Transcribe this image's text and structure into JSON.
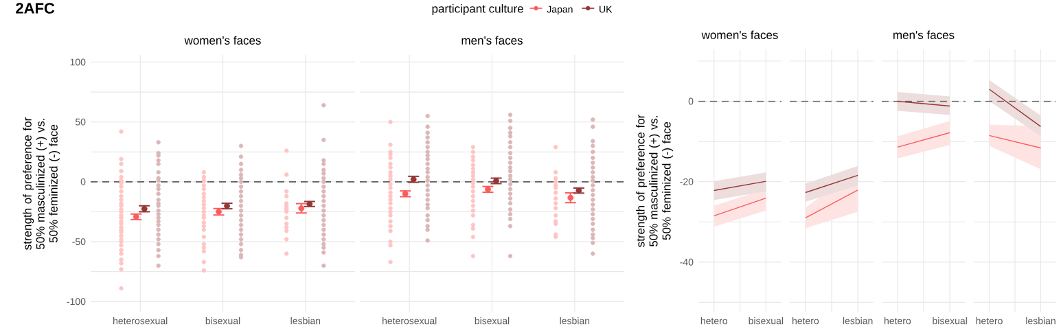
{
  "chart_data": [
    {
      "type": "scatter",
      "title": "women's faces",
      "ylabel": "strength of preference for 50% masculinized (+) vs. 50% feminized (-) face",
      "legend_title": "participant culture",
      "legend": "top",
      "annotations": [
        "2AFC"
      ],
      "categories": [
        "heterosexual",
        "bisexual",
        "lesbian"
      ],
      "ylim": [
        -109,
        106
      ],
      "yticks": [
        -100,
        {
          "value": -75,
          "label": null
        },
        -50,
        {
          "value": -25,
          "label": null
        },
        0,
        {
          "value": 25,
          "label": null
        },
        50,
        {
          "value": 75,
          "label": null
        },
        100
      ],
      "grid": true,
      "marker": "circle",
      "ref_lines": [
        {
          "axis": "y",
          "value": 0,
          "color": "#5f5f5f",
          "line_style": "dashed"
        }
      ],
      "series": [
        {
          "color": "#ffc4c4",
          "x": [
            "heterosexual",
            "heterosexual",
            "heterosexual",
            "heterosexual",
            "heterosexual",
            "heterosexual",
            "heterosexual",
            "heterosexual",
            "heterosexual",
            "heterosexual",
            "heterosexual",
            "heterosexual",
            "heterosexual",
            "heterosexual",
            "heterosexual",
            "heterosexual",
            "heterosexual",
            "heterosexual",
            "heterosexual",
            "heterosexual",
            "heterosexual",
            "heterosexual",
            "heterosexual",
            "heterosexual",
            "heterosexual",
            "heterosexual",
            "heterosexual",
            "heterosexual",
            "heterosexual",
            "heterosexual",
            "heterosexual",
            "heterosexual",
            "bisexual",
            "bisexual",
            "bisexual",
            "bisexual",
            "bisexual",
            "bisexual",
            "bisexual",
            "bisexual",
            "bisexual",
            "bisexual",
            "bisexual",
            "bisexual",
            "bisexual",
            "bisexual",
            "bisexual",
            "bisexual",
            "bisexual",
            "bisexual",
            "bisexual",
            "bisexual",
            "bisexual",
            "bisexual",
            "lesbian",
            "lesbian",
            "lesbian",
            "lesbian",
            "lesbian",
            "lesbian",
            "lesbian",
            "lesbian",
            "lesbian",
            "lesbian",
            "lesbian",
            "lesbian",
            "lesbian",
            "lesbian",
            "lesbian"
          ],
          "values": [
            42,
            19,
            15,
            9,
            4,
            1,
            -1,
            -4,
            -8,
            -12,
            -15,
            -18,
            -20,
            -23,
            -25,
            -28,
            -30,
            -33,
            -35,
            -38,
            -40,
            -42,
            -45,
            -48,
            -50,
            -53,
            -57,
            -60,
            -65,
            -68,
            -73,
            -89,
            8,
            4,
            1,
            -3,
            -6,
            -10,
            -13,
            -16,
            -19,
            -22,
            -25,
            -28,
            -30,
            -34,
            -37,
            -40,
            -46,
            -52,
            -55,
            -58,
            -67,
            -74,
            26,
            6,
            -8,
            -12,
            -18,
            -20,
            -22,
            -23,
            -25,
            -30,
            -35,
            -38,
            -41,
            -48,
            -60
          ]
        },
        {
          "color": "#dbb7b7",
          "x": [
            "heterosexual",
            "heterosexual",
            "heterosexual",
            "heterosexual",
            "heterosexual",
            "heterosexual",
            "heterosexual",
            "heterosexual",
            "heterosexual",
            "heterosexual",
            "heterosexual",
            "heterosexual",
            "heterosexual",
            "heterosexual",
            "heterosexual",
            "heterosexual",
            "heterosexual",
            "heterosexual",
            "heterosexual",
            "heterosexual",
            "heterosexual",
            "heterosexual",
            "heterosexual",
            "heterosexual",
            "heterosexual",
            "heterosexual",
            "bisexual",
            "bisexual",
            "bisexual",
            "bisexual",
            "bisexual",
            "bisexual",
            "bisexual",
            "bisexual",
            "bisexual",
            "bisexual",
            "bisexual",
            "bisexual",
            "bisexual",
            "bisexual",
            "bisexual",
            "bisexual",
            "bisexual",
            "bisexual",
            "bisexual",
            "bisexual",
            "bisexual",
            "bisexual",
            "bisexual",
            "lesbian",
            "lesbian",
            "lesbian",
            "lesbian",
            "lesbian",
            "lesbian",
            "lesbian",
            "lesbian",
            "lesbian",
            "lesbian",
            "lesbian",
            "lesbian",
            "lesbian",
            "lesbian",
            "lesbian",
            "lesbian",
            "lesbian",
            "lesbian",
            "lesbian",
            "lesbian",
            "lesbian",
            "lesbian",
            "lesbian",
            "lesbian"
          ],
          "values": [
            33,
            24,
            22,
            18,
            15,
            8,
            3,
            1,
            -3,
            -6,
            -10,
            -15,
            -18,
            -20,
            -24,
            -27,
            -30,
            -33,
            -36,
            -40,
            -44,
            -48,
            -52,
            -57,
            -62,
            -70,
            30,
            21,
            15,
            10,
            6,
            3,
            0,
            -4,
            -8,
            -12,
            -16,
            -20,
            -24,
            -28,
            -32,
            -36,
            -40,
            -44,
            -48,
            -52,
            -57,
            -61,
            -63,
            64,
            35,
            18,
            15,
            10,
            7,
            3,
            0,
            -4,
            -8,
            -12,
            -16,
            -20,
            -24,
            -28,
            -32,
            -36,
            -40,
            -44,
            -48,
            -52,
            -55,
            -59,
            -70
          ]
        },
        {
          "name": "Japan",
          "color": "#fb5c5c",
          "values": [
            -29.2,
            -25.0,
            -22.1
          ],
          "errors": [
            2.3,
            2.7,
            3.9
          ]
        },
        {
          "name": "UK",
          "color": "#953636",
          "values": [
            -22.5,
            -20.2,
            -18.5
          ],
          "errors": [
            2.5,
            2.3,
            2.1
          ]
        }
      ]
    },
    {
      "type": "scatter",
      "title": "men's faces",
      "categories": [
        "heterosexual",
        "bisexual",
        "lesbian"
      ],
      "ylim": [
        -109,
        106
      ],
      "yticks": [
        -100,
        {
          "value": -75,
          "label": null
        },
        -50,
        {
          "value": -25,
          "label": null
        },
        0,
        {
          "value": 25,
          "label": null
        },
        50,
        {
          "value": 75,
          "label": null
        },
        100
      ],
      "tick_labels": "x",
      "grid": true,
      "marker": "circle",
      "ref_lines": [
        {
          "axis": "y",
          "value": 0,
          "color": "#5f5f5f",
          "line_style": "dashed"
        }
      ],
      "series": [
        {
          "color": "#ffc4c4",
          "x": [
            "heterosexual",
            "heterosexual",
            "heterosexual",
            "heterosexual",
            "heterosexual",
            "heterosexual",
            "heterosexual",
            "heterosexual",
            "heterosexual",
            "heterosexual",
            "heterosexual",
            "heterosexual",
            "heterosexual",
            "heterosexual",
            "heterosexual",
            "heterosexual",
            "heterosexual",
            "heterosexual",
            "heterosexual",
            "heterosexual",
            "heterosexual",
            "heterosexual",
            "heterosexual",
            "heterosexual",
            "heterosexual",
            "bisexual",
            "bisexual",
            "bisexual",
            "bisexual",
            "bisexual",
            "bisexual",
            "bisexual",
            "bisexual",
            "bisexual",
            "bisexual",
            "bisexual",
            "bisexual",
            "bisexual",
            "bisexual",
            "bisexual",
            "bisexual",
            "bisexual",
            "bisexual",
            "bisexual",
            "bisexual",
            "bisexual",
            "lesbian",
            "lesbian",
            "lesbian",
            "lesbian",
            "lesbian",
            "lesbian",
            "lesbian",
            "lesbian",
            "lesbian",
            "lesbian",
            "lesbian",
            "lesbian",
            "lesbian",
            "lesbian",
            "lesbian"
          ],
          "values": [
            50,
            31,
            25,
            23,
            20,
            15,
            12,
            8,
            5,
            2,
            -2,
            -5,
            -9,
            -12,
            -15,
            -18,
            -22,
            -25,
            -28,
            -33,
            -37,
            -41,
            -50,
            -53,
            -67,
            29,
            25,
            21,
            18,
            14,
            11,
            8,
            5,
            2,
            -1,
            -4,
            -8,
            -12,
            -16,
            -20,
            -24,
            -28,
            -36,
            -39,
            -46,
            -62,
            29,
            8,
            3,
            0,
            -3,
            -5,
            -9,
            -14,
            -18,
            -22,
            -28,
            -33,
            -35,
            -44,
            -46
          ]
        },
        {
          "color": "#dbb7b7",
          "x": [
            "heterosexual",
            "heterosexual",
            "heterosexual",
            "heterosexual",
            "heterosexual",
            "heterosexual",
            "heterosexual",
            "heterosexual",
            "heterosexual",
            "heterosexual",
            "heterosexual",
            "heterosexual",
            "heterosexual",
            "heterosexual",
            "heterosexual",
            "heterosexual",
            "heterosexual",
            "heterosexual",
            "heterosexual",
            "heterosexual",
            "heterosexual",
            "heterosexual",
            "heterosexual",
            "heterosexual",
            "heterosexual",
            "bisexual",
            "bisexual",
            "bisexual",
            "bisexual",
            "bisexual",
            "bisexual",
            "bisexual",
            "bisexual",
            "bisexual",
            "bisexual",
            "bisexual",
            "bisexual",
            "bisexual",
            "bisexual",
            "bisexual",
            "bisexual",
            "bisexual",
            "bisexual",
            "bisexual",
            "bisexual",
            "bisexual",
            "bisexual",
            "bisexual",
            "bisexual",
            "lesbian",
            "lesbian",
            "lesbian",
            "lesbian",
            "lesbian",
            "lesbian",
            "lesbian",
            "lesbian",
            "lesbian",
            "lesbian",
            "lesbian",
            "lesbian",
            "lesbian",
            "lesbian",
            "lesbian",
            "lesbian",
            "lesbian",
            "lesbian",
            "lesbian",
            "lesbian",
            "lesbian",
            "lesbian",
            "lesbian",
            "lesbian",
            "lesbian"
          ],
          "values": [
            55,
            46,
            41,
            37,
            33,
            29,
            25,
            22,
            19,
            15,
            11,
            8,
            4,
            1,
            -3,
            -7,
            -11,
            -15,
            -19,
            -22,
            -28,
            -32,
            -37,
            -40,
            -49,
            56,
            51,
            45,
            41,
            38,
            33,
            29,
            24,
            20,
            16,
            12,
            9,
            5,
            2,
            -2,
            -6,
            -10,
            -14,
            -18,
            -23,
            -27,
            -31,
            -37,
            -62,
            52,
            46,
            34,
            30,
            25,
            20,
            16,
            12,
            8,
            4,
            1,
            -3,
            -7,
            -11,
            -15,
            -19,
            -23,
            -27,
            -31,
            -35,
            -40,
            -44,
            -47,
            -51,
            -60
          ]
        },
        {
          "color": "#fb5c5c",
          "values": [
            -10.0,
            -6.3,
            -13.3
          ],
          "errors": [
            2.4,
            2.4,
            4.1
          ]
        },
        {
          "color": "#953636",
          "values": [
            2.1,
            0.8,
            -7.3
          ],
          "errors": [
            2.5,
            2.3,
            2.1
          ]
        }
      ]
    },
    {
      "type": "line",
      "title": "women's faces",
      "ylabel": "strength of preference for 50% masculinized (+) vs. 50% feminized (-) face",
      "categories": [
        "hetero",
        "bisexual"
      ],
      "ylim": [
        -52.5,
        12.9
      ],
      "yticks": [
        {
          "value": -50,
          "label": null
        },
        -40,
        {
          "value": -30,
          "label": null
        },
        -20,
        {
          "value": -10,
          "label": null
        },
        0,
        {
          "value": 10,
          "label": null
        }
      ],
      "grid": true,
      "ref_lines": [
        {
          "axis": "y",
          "value": 0,
          "color": "#5f5f5f",
          "line_style": "dashed"
        }
      ],
      "series": [
        {
          "color": "#fb5c5c",
          "values": [
            -28.5,
            -24.1
          ],
          "lower": [
            -31.2,
            -27.2
          ],
          "upper": [
            -26.0,
            -21.8
          ]
        },
        {
          "color": "#953636",
          "values": [
            -22.2,
            -19.9
          ],
          "lower": [
            -24.6,
            -22.4
          ],
          "upper": [
            -19.9,
            -17.7
          ]
        }
      ]
    },
    {
      "type": "line",
      "categories": [
        "hetero",
        "lesbian"
      ],
      "ylim": [
        -52.5,
        12.9
      ],
      "yticks": [
        {
          "value": -50,
          "label": null
        },
        {
          "value": -40,
          "label": null
        },
        {
          "value": -30,
          "label": null
        },
        {
          "value": -20,
          "label": null
        },
        {
          "value": -10,
          "label": null
        },
        {
          "value": 0,
          "label": null
        },
        {
          "value": 10,
          "label": null
        }
      ],
      "tick_labels": "x",
      "grid": true,
      "ref_lines": [
        {
          "axis": "y",
          "value": 0,
          "color": "#5f5f5f",
          "line_style": "dashed"
        }
      ],
      "series": [
        {
          "color": "#fb5c5c",
          "values": [
            -29.0,
            -22.1
          ],
          "lower": [
            -31.6,
            -27.5
          ],
          "upper": [
            -26.5,
            -16.7
          ]
        },
        {
          "color": "#953636",
          "values": [
            -22.7,
            -18.4
          ],
          "lower": [
            -25.0,
            -20.9
          ],
          "upper": [
            -20.5,
            -16.1
          ]
        }
      ]
    },
    {
      "type": "line",
      "title": "men's faces",
      "categories": [
        "hetero",
        "bisexual"
      ],
      "ylim": [
        -52.5,
        12.9
      ],
      "yticks": [
        {
          "value": -50,
          "label": null
        },
        {
          "value": -40,
          "label": null
        },
        {
          "value": -30,
          "label": null
        },
        {
          "value": -20,
          "label": null
        },
        {
          "value": -10,
          "label": null
        },
        {
          "value": 0,
          "label": null
        },
        {
          "value": 10,
          "label": null
        }
      ],
      "tick_labels": "x",
      "grid": true,
      "ref_lines": [
        {
          "axis": "y",
          "value": 0,
          "color": "#5f5f5f",
          "line_style": "dashed"
        }
      ],
      "series": [
        {
          "color": "#fb5c5c",
          "values": [
            -11.4,
            -7.8
          ],
          "lower": [
            -14.2,
            -10.9
          ],
          "upper": [
            -8.7,
            -4.9
          ]
        },
        {
          "color": "#953636",
          "values": [
            0.0,
            -1.2
          ],
          "lower": [
            -2.4,
            -3.4
          ],
          "upper": [
            2.3,
            1.2
          ]
        }
      ]
    },
    {
      "type": "line",
      "categories": [
        "hetero",
        "lesbian"
      ],
      "ylim": [
        -52.5,
        12.9
      ],
      "yticks": [
        {
          "value": -50,
          "label": null
        },
        {
          "value": -40,
          "label": null
        },
        {
          "value": -30,
          "label": null
        },
        {
          "value": -20,
          "label": null
        },
        {
          "value": -10,
          "label": null
        },
        {
          "value": 0,
          "label": null
        },
        {
          "value": 10,
          "label": null
        }
      ],
      "tick_labels": "x",
      "grid": true,
      "ref_lines": [
        {
          "axis": "y",
          "value": 0,
          "color": "#5f5f5f",
          "line_style": "dashed"
        }
      ],
      "series": [
        {
          "color": "#fb5c5c",
          "values": [
            -8.5,
            -11.6
          ],
          "lower": [
            -11.1,
            -16.9
          ],
          "upper": [
            -5.8,
            -6.2
          ]
        },
        {
          "color": "#953636",
          "values": [
            3.0,
            -6.3
          ],
          "lower": [
            0.1,
            -8.7
          ],
          "upper": [
            5.3,
            -3.6
          ]
        }
      ]
    }
  ]
}
